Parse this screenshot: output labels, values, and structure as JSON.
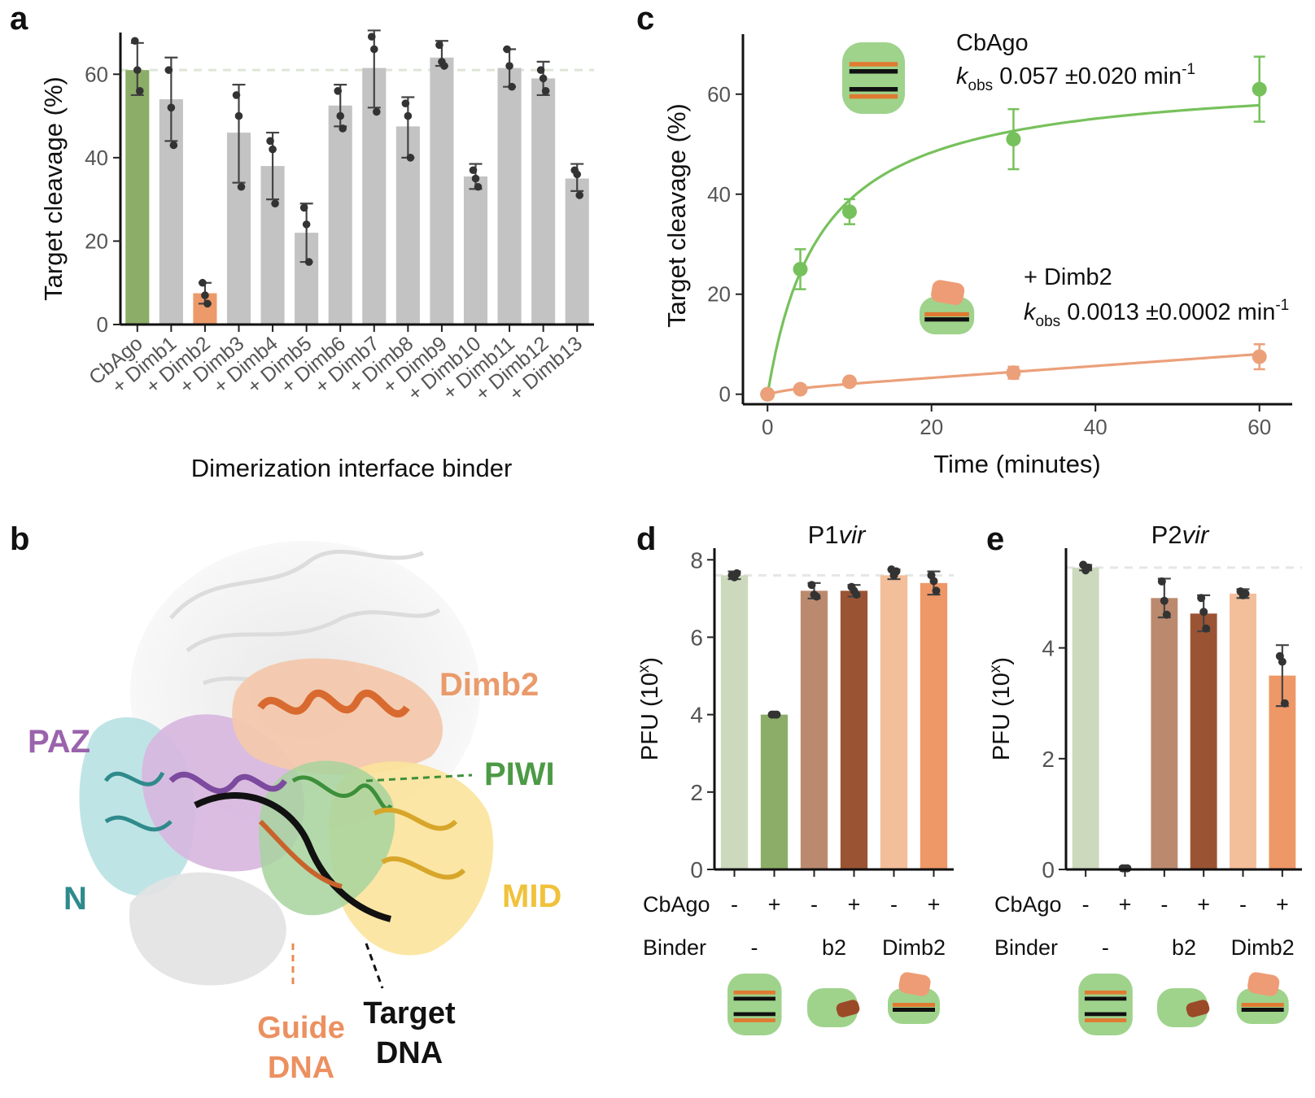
{
  "panels": {
    "a": "a",
    "b": "b",
    "c": "c",
    "d": "d",
    "e": "e"
  },
  "colors": {
    "green": "#8cad67",
    "green_line": "#77c15c",
    "orange": "#ec9a6a",
    "orange_line": "#eba07a",
    "grey": "#c3c3c3",
    "pale_green": "#ccd9bd",
    "brown": "#bb8a6e",
    "dark_brown": "#9b5433",
    "light_orange": "#f3be9a",
    "dimb_orange": "#ee9867"
  },
  "structure_labels": {
    "dimb2": "Dimb2",
    "paz": "PAZ",
    "piwi": "PIWI",
    "n": "N",
    "mid": "MID",
    "guide_1": "Guide",
    "guide_2": "DNA",
    "target_1": "Target",
    "target_2": "DNA"
  },
  "chart_data": [
    {
      "panel": "a",
      "type": "bar",
      "ylabel": "Target cleavage (%)",
      "xlabel": "Dimerization interface binder",
      "ylim": [
        0,
        70
      ],
      "yticks": [
        0,
        20,
        40,
        60
      ],
      "reference_line": 61,
      "categories": [
        "CbAgo",
        "+ Dimb1",
        "+ Dimb2",
        "+ Dimb3",
        "+ Dimb4",
        "+ Dimb5",
        "+ Dimb6",
        "+ Dimb7",
        "+ Dimb8",
        "+ Dimb9",
        "+ Dimb10",
        "+ Dimb11",
        "+ Dimb12",
        "+ Dimb13"
      ],
      "values": [
        61,
        54,
        7.5,
        46,
        38,
        22,
        52.5,
        61.5,
        47.5,
        64,
        35.5,
        61.5,
        59,
        35
      ],
      "error_low": [
        55,
        44,
        5,
        34,
        30,
        15,
        47.5,
        52,
        40,
        62,
        32.5,
        57,
        55,
        32
      ],
      "error_high": [
        67.5,
        64,
        10,
        57.5,
        46,
        29,
        57.5,
        70.5,
        54.5,
        68,
        38.5,
        66,
        63,
        38.5
      ],
      "points": [
        [
          68,
          61,
          56
        ],
        [
          61,
          52,
          43
        ],
        [
          10,
          7,
          5
        ],
        [
          55,
          50,
          33
        ],
        [
          44,
          42,
          29
        ],
        [
          28,
          24,
          15
        ],
        [
          56,
          50,
          47
        ],
        [
          69,
          66,
          51
        ],
        [
          53,
          50,
          40
        ],
        [
          67,
          63,
          62
        ],
        [
          37,
          35,
          33
        ],
        [
          66,
          62,
          57
        ],
        [
          61,
          59,
          56
        ],
        [
          37,
          36,
          31
        ]
      ],
      "bar_colors": [
        "green",
        "grey",
        "orange",
        "grey",
        "grey",
        "grey",
        "grey",
        "grey",
        "grey",
        "grey",
        "grey",
        "grey",
        "grey",
        "grey"
      ]
    },
    {
      "panel": "c",
      "type": "line",
      "ylabel": "Target cleavage (%)",
      "xlabel": "Time (minutes)",
      "xlim": [
        -3,
        64
      ],
      "ylim": [
        -2,
        72
      ],
      "xticks": [
        0,
        20,
        40,
        60
      ],
      "yticks": [
        0,
        20,
        40,
        60
      ],
      "series": [
        {
          "name": "CbAgo",
          "rate_label": "0.057 ±0.020 min",
          "x": [
            0,
            4,
            10,
            30,
            60
          ],
          "y": [
            0,
            25,
            36.5,
            51,
            61
          ],
          "err": [
            0,
            4,
            2.5,
            6,
            6.5
          ],
          "color": "green_line"
        },
        {
          "name": "+ Dimb2",
          "rate_label": "0.0013 ±0.0002 min",
          "x": [
            0,
            4,
            10,
            30,
            60
          ],
          "y": [
            0,
            1,
            2.5,
            4.3,
            7.5
          ],
          "err": [
            0,
            0.6,
            0.6,
            1.2,
            2.5
          ],
          "color": "orange_line"
        }
      ],
      "kobs_k": "k",
      "kobs_sub": "obs",
      "kobs_sup": "-1"
    },
    {
      "panel": "d",
      "type": "bar",
      "title_main": "P1",
      "title_italic": "vir",
      "ylabel": "PFU (10",
      "ylabel_sup": "x",
      "ylabel_end": ")",
      "ylim": [
        0,
        8.3
      ],
      "yticks": [
        0,
        2,
        4,
        6,
        8
      ],
      "reference_line": 7.6,
      "values": [
        7.6,
        4.0,
        7.2,
        7.2,
        7.6,
        7.4
      ],
      "error_low": [
        7.5,
        4.0,
        7.0,
        7.05,
        7.5,
        7.1
      ],
      "error_high": [
        7.7,
        4.0,
        7.4,
        7.35,
        7.75,
        7.7
      ],
      "points": [
        [
          7.6,
          7.55,
          7.65
        ],
        [
          4.0,
          4.0,
          4.0
        ],
        [
          7.35,
          7.1,
          7.05
        ],
        [
          7.3,
          7.2,
          7.1
        ],
        [
          7.75,
          7.6,
          7.7
        ],
        [
          7.6,
          7.45,
          7.2
        ]
      ],
      "bar_colors": [
        "pale_green",
        "green",
        "brown",
        "dark_brown",
        "light_orange",
        "dimb_orange"
      ],
      "cbago_label": "CbAgo",
      "cbago": [
        "-",
        "+",
        "-",
        "+",
        "-",
        "+"
      ],
      "binder_label": "Binder",
      "binders": [
        "-",
        "b2",
        "Dimb2"
      ]
    },
    {
      "panel": "e",
      "type": "bar",
      "title_main": "P2",
      "title_italic": "vir",
      "ylabel": "PFU (10",
      "ylabel_sup": "x",
      "ylabel_end": ")",
      "ylim": [
        0,
        5.8
      ],
      "yticks": [
        0,
        2,
        4
      ],
      "reference_line": 5.45,
      "values": [
        5.45,
        0.02,
        4.9,
        4.62,
        4.98,
        3.5
      ],
      "error_low": [
        5.4,
        0.02,
        4.55,
        4.3,
        4.9,
        2.95
      ],
      "error_high": [
        5.5,
        0.02,
        5.25,
        4.95,
        5.06,
        4.05
      ],
      "points": [
        [
          5.5,
          5.4,
          5.45
        ],
        [
          0.02,
          0.02,
          0.02
        ],
        [
          5.2,
          4.85,
          4.6
        ],
        [
          4.9,
          4.65,
          4.35
        ],
        [
          5.02,
          4.95,
          4.98
        ],
        [
          3.85,
          3.75,
          3.0
        ]
      ],
      "bar_colors": [
        "pale_green",
        "green",
        "brown",
        "dark_brown",
        "light_orange",
        "dimb_orange"
      ],
      "cbago_label": "CbAgo",
      "cbago": [
        "-",
        "+",
        "-",
        "+",
        "-",
        "+"
      ],
      "binder_label": "Binder",
      "binders": [
        "-",
        "b2",
        "Dimb2"
      ]
    }
  ]
}
